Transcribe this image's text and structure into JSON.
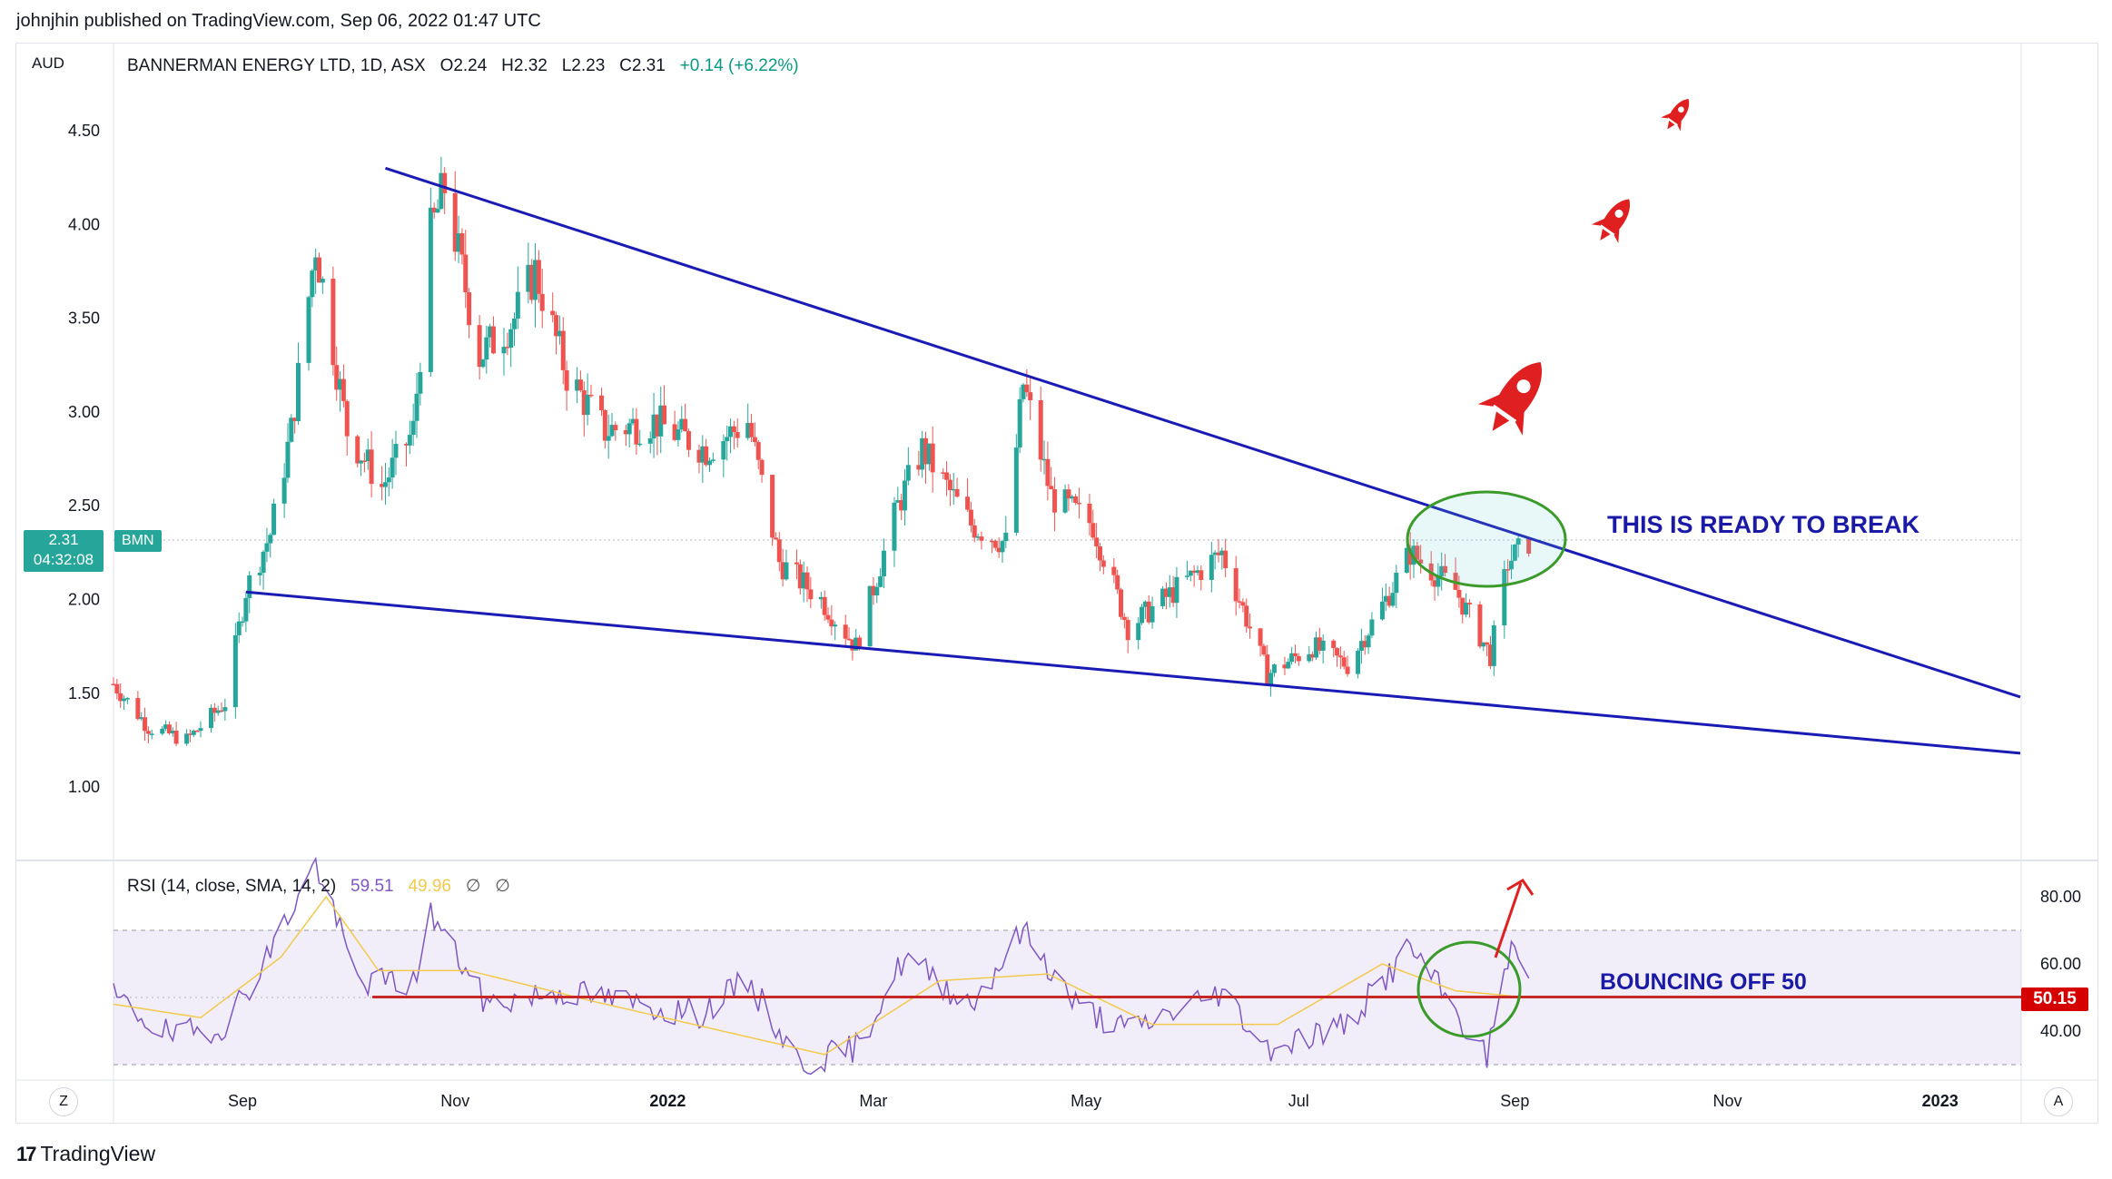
{
  "header": {
    "publisher_text": "johnjhin published on TradingView.com, Sep 06, 2022 01:47 UTC"
  },
  "legend": {
    "symbol_info": "BANNERMAN ENERGY LTD, 1D, ASX",
    "open": "O2.24",
    "high": "H2.32",
    "low": "L2.23",
    "close": "C2.31",
    "change": "+0.14 (+6.22%)"
  },
  "rsi_legend": {
    "label": "RSI (14, close, SMA, 14, 2)",
    "rsi_value": "59.51",
    "sma_value": "49.96",
    "extra1": "∅",
    "extra2": "∅"
  },
  "badges": {
    "price": "2.31",
    "countdown": "04:32:08",
    "symbol": "BMN",
    "rsi_level": "50.15"
  },
  "annotations": {
    "break_text": "THIS IS READY TO BREAK",
    "bounce_text": "BOUNCING OFF 50"
  },
  "footer": {
    "logo_text": "TradingView",
    "logo_mark": "17"
  },
  "buttons": {
    "zoom_label": "Z",
    "auto_label": "A"
  },
  "colors": {
    "up": "#26a69a",
    "down": "#ef5350",
    "trendline": "#1a1ab4",
    "rsi_line": "#7e57c2",
    "rsi_sma": "#f2c94c",
    "level_line": "#c62828",
    "circle": "#3a9a2a",
    "rocket": "#e02020"
  },
  "chart_data": [
    {
      "type": "candlestick",
      "currency_label": "AUD",
      "y_ticks": [
        "4.50",
        "4.00",
        "3.50",
        "3.00",
        "2.50",
        "2.00",
        "1.50",
        "1.00"
      ],
      "x_ticks": [
        "Sep",
        "Nov",
        "2022",
        "Mar",
        "May",
        "Jul",
        "Sep",
        "Nov",
        "2023"
      ],
      "ylim": [
        0.6,
        4.85
      ],
      "approx_close_path": [
        [
          "2021-07-26",
          1.55
        ],
        [
          "2021-08-05",
          1.32
        ],
        [
          "2021-08-16",
          1.25
        ],
        [
          "2021-08-27",
          1.45
        ],
        [
          "2021-09-02",
          2.05
        ],
        [
          "2021-09-09",
          2.35
        ],
        [
          "2021-09-15",
          2.9
        ],
        [
          "2021-09-22",
          3.9
        ],
        [
          "2021-10-01",
          2.9
        ],
        [
          "2021-10-11",
          2.6
        ],
        [
          "2021-10-20",
          2.9
        ],
        [
          "2021-10-25",
          3.95
        ],
        [
          "2021-10-29",
          4.2
        ],
        [
          "2021-11-08",
          3.3
        ],
        [
          "2021-11-18",
          3.5
        ],
        [
          "2021-11-24",
          3.75
        ],
        [
          "2021-12-03",
          3.2
        ],
        [
          "2021-12-14",
          2.9
        ],
        [
          "2021-12-28",
          2.95
        ],
        [
          "2022-01-12",
          2.8
        ],
        [
          "2022-01-24",
          2.95
        ],
        [
          "2022-02-02",
          2.2
        ],
        [
          "2022-02-14",
          2.0
        ],
        [
          "2022-02-24",
          1.75
        ],
        [
          "2022-03-08",
          2.5
        ],
        [
          "2022-03-15",
          2.8
        ],
        [
          "2022-03-29",
          2.4
        ],
        [
          "2022-04-08",
          2.3
        ],
        [
          "2022-04-13",
          3.15
        ],
        [
          "2022-04-21",
          2.55
        ],
        [
          "2022-05-03",
          2.4
        ],
        [
          "2022-05-13",
          1.85
        ],
        [
          "2022-05-30",
          2.1
        ],
        [
          "2022-06-09",
          2.25
        ],
        [
          "2022-06-22",
          1.6
        ],
        [
          "2022-07-05",
          1.75
        ],
        [
          "2022-07-15",
          1.65
        ],
        [
          "2022-07-26",
          2.0
        ],
        [
          "2022-08-02",
          2.25
        ],
        [
          "2022-08-15",
          2.05
        ],
        [
          "2022-08-25",
          1.7
        ],
        [
          "2022-08-30",
          2.2
        ],
        [
          "2022-09-05",
          2.31
        ]
      ],
      "trendlines": [
        {
          "name": "upper",
          "from": [
            "2021-10-12",
            4.3
          ],
          "to": [
            "2023-01-24",
            1.48
          ]
        },
        {
          "name": "lower",
          "from": [
            "2021-09-02",
            2.04
          ],
          "to": [
            "2023-01-24",
            1.18
          ]
        }
      ]
    },
    {
      "type": "line",
      "y_ticks": [
        "80.00",
        "60.00",
        "40.00"
      ],
      "bands": [
        70,
        30
      ],
      "level": 50.15,
      "approx_rsi_path": [
        [
          "2021-07-26",
          50
        ],
        [
          "2021-08-12",
          38
        ],
        [
          "2021-08-27",
          42
        ],
        [
          "2021-09-08",
          62
        ],
        [
          "2021-09-22",
          90
        ],
        [
          "2021-10-04",
          55
        ],
        [
          "2021-10-20",
          54
        ],
        [
          "2021-10-25",
          75
        ],
        [
          "2021-11-10",
          48
        ],
        [
          "2021-12-01",
          52
        ],
        [
          "2022-01-10",
          45
        ],
        [
          "2022-01-24",
          55
        ],
        [
          "2022-02-08",
          30
        ],
        [
          "2022-02-24",
          35
        ],
        [
          "2022-03-10",
          62
        ],
        [
          "2022-03-29",
          48
        ],
        [
          "2022-04-13",
          70
        ],
        [
          "2022-04-28",
          48
        ],
        [
          "2022-05-13",
          40
        ],
        [
          "2022-06-09",
          52
        ],
        [
          "2022-06-22",
          35
        ],
        [
          "2022-07-15",
          42
        ],
        [
          "2022-08-02",
          65
        ],
        [
          "2022-08-24",
          32
        ],
        [
          "2022-08-30",
          63
        ],
        [
          "2022-09-05",
          59.51
        ]
      ],
      "approx_sma_path": [
        [
          "2021-07-26",
          48
        ],
        [
          "2021-08-20",
          44
        ],
        [
          "2021-09-12",
          62
        ],
        [
          "2021-09-25",
          80
        ],
        [
          "2021-10-10",
          58
        ],
        [
          "2021-11-05",
          58
        ],
        [
          "2021-12-10",
          49
        ],
        [
          "2022-02-15",
          33
        ],
        [
          "2022-03-20",
          55
        ],
        [
          "2022-04-20",
          57
        ],
        [
          "2022-05-20",
          42
        ],
        [
          "2022-06-25",
          42
        ],
        [
          "2022-07-25",
          60
        ],
        [
          "2022-08-15",
          52
        ],
        [
          "2022-09-05",
          49.96
        ]
      ]
    }
  ]
}
